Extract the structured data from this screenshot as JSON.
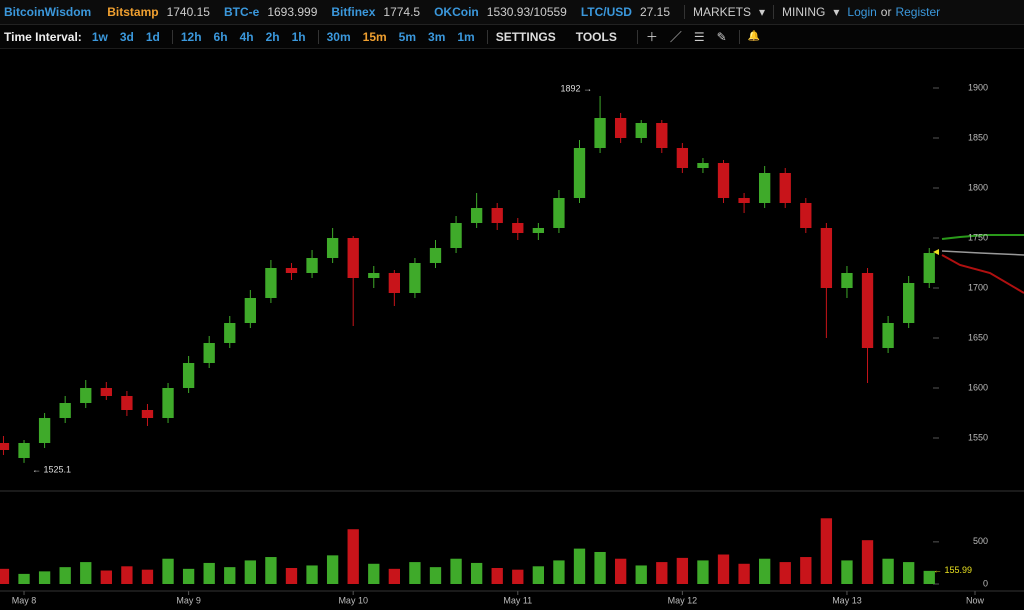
{
  "header": {
    "brand": "BitcoinWisdom",
    "tickers": [
      {
        "name": "Bitstamp",
        "price": "1740.15"
      },
      {
        "name": "BTC-e",
        "price": "1693.999"
      },
      {
        "name": "Bitfinex",
        "price": "1774.5"
      },
      {
        "name": "OKCoin",
        "price": "1530.93/10559"
      },
      {
        "name": "LTC/USD",
        "price": "27.15"
      }
    ],
    "menus": [
      "MARKETS",
      "MINING"
    ],
    "login": "Login",
    "or": "or",
    "register": "Register"
  },
  "toolbar": {
    "label": "Time Interval:",
    "intervals": [
      "1w",
      "3d",
      "1d",
      "12h",
      "6h",
      "4h",
      "2h",
      "1h",
      "30m",
      "15m",
      "5m",
      "3m",
      "1m"
    ],
    "settings": "SETTINGS",
    "tools": "TOOLS"
  },
  "chart_data": {
    "type": "candlestick",
    "up_color": "#3faa2a",
    "down_color": "#c8141a",
    "x": [
      -0.125,
      0,
      0.125,
      0.25,
      0.375,
      0.5,
      0.625,
      0.75,
      0.875,
      1,
      1.125,
      1.25,
      1.375,
      1.5,
      1.625,
      1.75,
      1.875,
      2,
      2.125,
      2.25,
      2.375,
      2.5,
      2.625,
      2.75,
      2.875,
      3,
      3.125,
      3.25,
      3.375,
      3.5,
      3.625,
      3.75,
      3.875,
      4,
      4.125,
      4.25,
      4.375,
      4.5,
      4.625,
      4.75,
      4.875,
      5,
      5.125,
      5.25,
      5.375,
      5.5
    ],
    "open": [
      1545,
      1530,
      1545,
      1570,
      1585,
      1600,
      1592,
      1578,
      1570,
      1600,
      1625,
      1645,
      1665,
      1690,
      1720,
      1715,
      1730,
      1750,
      1710,
      1715,
      1695,
      1725,
      1740,
      1765,
      1780,
      1765,
      1755,
      1760,
      1790,
      1840,
      1870,
      1850,
      1865,
      1840,
      1820,
      1825,
      1790,
      1785,
      1815,
      1785,
      1760,
      1700,
      1715,
      1640,
      1665,
      1705
    ],
    "high": [
      1552,
      1548,
      1575,
      1592,
      1608,
      1606,
      1597,
      1584,
      1605,
      1632,
      1652,
      1672,
      1698,
      1728,
      1725,
      1738,
      1760,
      1752,
      1722,
      1718,
      1730,
      1748,
      1772,
      1795,
      1785,
      1770,
      1765,
      1798,
      1848,
      1892,
      1875,
      1868,
      1868,
      1845,
      1830,
      1828,
      1795,
      1822,
      1820,
      1790,
      1765,
      1722,
      1720,
      1672,
      1712,
      1740
    ],
    "low": [
      1533,
      1525.1,
      1540,
      1565,
      1580,
      1588,
      1572,
      1562,
      1565,
      1595,
      1620,
      1640,
      1660,
      1685,
      1708,
      1710,
      1725,
      1662,
      1700,
      1682,
      1690,
      1720,
      1735,
      1760,
      1758,
      1748,
      1748,
      1755,
      1785,
      1835,
      1845,
      1845,
      1835,
      1815,
      1815,
      1785,
      1775,
      1780,
      1780,
      1755,
      1650,
      1690,
      1605,
      1635,
      1660,
      1700
    ],
    "close": [
      1538,
      1545,
      1570,
      1585,
      1600,
      1592,
      1578,
      1570,
      1600,
      1625,
      1645,
      1665,
      1690,
      1720,
      1715,
      1730,
      1750,
      1710,
      1715,
      1695,
      1725,
      1740,
      1765,
      1780,
      1765,
      1755,
      1760,
      1790,
      1840,
      1870,
      1850,
      1865,
      1840,
      1820,
      1825,
      1790,
      1785,
      1815,
      1785,
      1760,
      1700,
      1715,
      1640,
      1665,
      1705,
      1735
    ],
    "volume": [
      180,
      120,
      150,
      200,
      260,
      160,
      210,
      170,
      300,
      180,
      250,
      200,
      280,
      320,
      190,
      220,
      340,
      650,
      240,
      180,
      260,
      200,
      300,
      250,
      190,
      170,
      210,
      280,
      420,
      380,
      300,
      220,
      260,
      310,
      280,
      350,
      240,
      300,
      260,
      320,
      780,
      280,
      520,
      300,
      260,
      155.99
    ],
    "xlim": [
      -0.146,
      5.778
    ],
    "xticks": [
      {
        "value": 0,
        "label": "May 8"
      },
      {
        "value": 1,
        "label": "May 9"
      },
      {
        "value": 2,
        "label": "May 10"
      },
      {
        "value": 3,
        "label": "May 11"
      },
      {
        "value": 4,
        "label": "May 12"
      },
      {
        "value": 5,
        "label": "May 13"
      },
      {
        "value": 5.778,
        "label": "Now"
      }
    ],
    "ylim": [
      1497,
      1939
    ],
    "yticks": [
      1550,
      1600,
      1650,
      1700,
      1750,
      1800,
      1850,
      1900
    ],
    "vol_ylim": [
      0,
      1080
    ],
    "vol_yticks": [
      0,
      500
    ],
    "annotations": [
      {
        "value": 1892,
        "x": 3.5,
        "label": "1892 →"
      },
      {
        "value": 1525.1,
        "x": 0,
        "label": "← 1525.1"
      }
    ],
    "volume_annotation": {
      "value": 155.99,
      "label": "← 155.99"
    }
  }
}
